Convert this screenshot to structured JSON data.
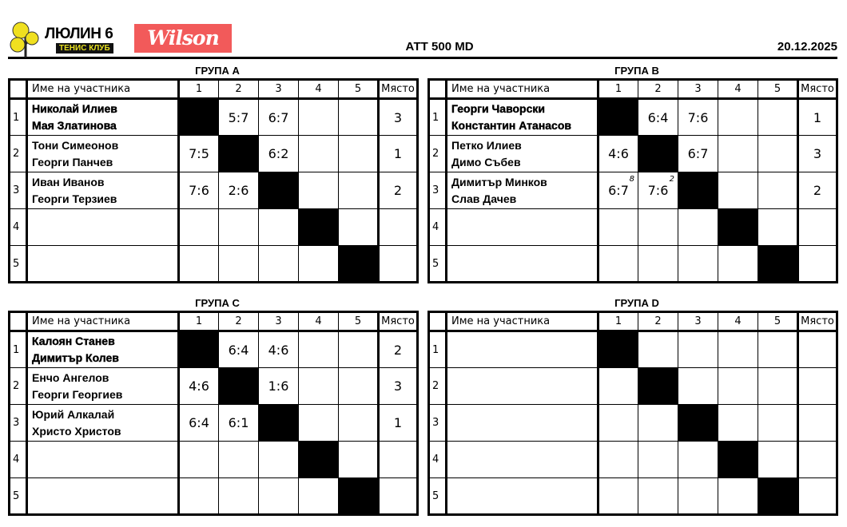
{
  "header": {
    "club_name": "ЛЮЛИН 6",
    "club_sub": "ТЕНИС КЛУБ",
    "sponsor": "Wilson",
    "title": "АТТ 500 MD",
    "date": "20.12.2025"
  },
  "columns": {
    "name": "Име на участника",
    "nums": [
      "1",
      "2",
      "3",
      "4",
      "5"
    ],
    "place": "Място"
  },
  "groups": [
    {
      "title": "ГРУПА A",
      "rows": [
        {
          "n": "1",
          "p1": "Николай Илиев",
          "p2": "Мая Златинова",
          "scores": [
            "",
            "5:7",
            "6:7",
            "",
            ""
          ],
          "tb": [
            "",
            "",
            "",
            "",
            ""
          ],
          "place": "3"
        },
        {
          "n": "2",
          "p1": "Тони Симеонов",
          "p2": "Георги Панчев",
          "scores": [
            "7:5",
            "",
            "6:2",
            "",
            ""
          ],
          "tb": [
            "",
            "",
            "",
            "",
            ""
          ],
          "place": "1"
        },
        {
          "n": "3",
          "p1": "Иван Иванов",
          "p2": "Георги Терзиев",
          "scores": [
            "7:6",
            "2:6",
            "",
            "",
            ""
          ],
          "tb": [
            "",
            "",
            "",
            "",
            ""
          ],
          "place": "2"
        },
        {
          "n": "4",
          "p1": "",
          "p2": "",
          "scores": [
            "",
            "",
            "",
            "",
            ""
          ],
          "tb": [
            "",
            "",
            "",
            "",
            ""
          ],
          "place": ""
        },
        {
          "n": "5",
          "p1": "",
          "p2": "",
          "scores": [
            "",
            "",
            "",
            "",
            ""
          ],
          "tb": [
            "",
            "",
            "",
            "",
            ""
          ],
          "place": ""
        }
      ]
    },
    {
      "title": "ГРУПА B",
      "rows": [
        {
          "n": "1",
          "p1": "Георги Чаворски",
          "p2": "Константин Атанасов",
          "scores": [
            "",
            "6:4",
            "7:6",
            "",
            ""
          ],
          "tb": [
            "",
            "",
            "",
            "",
            ""
          ],
          "place": "1"
        },
        {
          "n": "2",
          "p1": "Петко Илиев",
          "p2": "Димо Събев",
          "scores": [
            "4:6",
            "",
            "6:7",
            "",
            ""
          ],
          "tb": [
            "",
            "",
            "",
            "",
            ""
          ],
          "place": "3"
        },
        {
          "n": "3",
          "p1": "Димитър Минков",
          "p2": "Слав Дачев",
          "scores": [
            "6:7",
            "7:6",
            "",
            "",
            ""
          ],
          "tb": [
            "8",
            "2",
            "",
            "",
            ""
          ],
          "place": "2"
        },
        {
          "n": "4",
          "p1": "",
          "p2": "",
          "scores": [
            "",
            "",
            "",
            "",
            ""
          ],
          "tb": [
            "",
            "",
            "",
            "",
            ""
          ],
          "place": ""
        },
        {
          "n": "5",
          "p1": "",
          "p2": "",
          "scores": [
            "",
            "",
            "",
            "",
            ""
          ],
          "tb": [
            "",
            "",
            "",
            "",
            ""
          ],
          "place": ""
        }
      ]
    },
    {
      "title": "ГРУПА C",
      "rows": [
        {
          "n": "1",
          "p1": "Калоян Станев",
          "p2": "Димитър Колев",
          "scores": [
            "",
            "6:4",
            "4:6",
            "",
            ""
          ],
          "tb": [
            "",
            "",
            "",
            "",
            ""
          ],
          "place": "2"
        },
        {
          "n": "2",
          "p1": "Енчо Ангелов",
          "p2": "Георги Георгиев",
          "scores": [
            "4:6",
            "",
            "1:6",
            "",
            ""
          ],
          "tb": [
            "",
            "",
            "",
            "",
            ""
          ],
          "place": "3"
        },
        {
          "n": "3",
          "p1": "Юрий Алкалай",
          "p2": "Христо Христов",
          "scores": [
            "6:4",
            "6:1",
            "",
            "",
            ""
          ],
          "tb": [
            "",
            "",
            "",
            "",
            ""
          ],
          "place": "1"
        },
        {
          "n": "4",
          "p1": "",
          "p2": "",
          "scores": [
            "",
            "",
            "",
            "",
            ""
          ],
          "tb": [
            "",
            "",
            "",
            "",
            ""
          ],
          "place": ""
        },
        {
          "n": "5",
          "p1": "",
          "p2": "",
          "scores": [
            "",
            "",
            "",
            "",
            ""
          ],
          "tb": [
            "",
            "",
            "",
            "",
            ""
          ],
          "place": ""
        }
      ]
    },
    {
      "title": "ГРУПА D",
      "rows": [
        {
          "n": "1",
          "p1": "",
          "p2": "",
          "scores": [
            "",
            "",
            "",
            "",
            ""
          ],
          "tb": [
            "",
            "",
            "",
            "",
            ""
          ],
          "place": ""
        },
        {
          "n": "2",
          "p1": "",
          "p2": "",
          "scores": [
            "",
            "",
            "",
            "",
            ""
          ],
          "tb": [
            "",
            "",
            "",
            "",
            ""
          ],
          "place": ""
        },
        {
          "n": "3",
          "p1": "",
          "p2": "",
          "scores": [
            "",
            "",
            "",
            "",
            ""
          ],
          "tb": [
            "",
            "",
            "",
            "",
            ""
          ],
          "place": ""
        },
        {
          "n": "4",
          "p1": "",
          "p2": "",
          "scores": [
            "",
            "",
            "",
            "",
            ""
          ],
          "tb": [
            "",
            "",
            "",
            "",
            ""
          ],
          "place": ""
        },
        {
          "n": "5",
          "p1": "",
          "p2": "",
          "scores": [
            "",
            "",
            "",
            "",
            ""
          ],
          "tb": [
            "",
            "",
            "",
            "",
            ""
          ],
          "place": ""
        }
      ]
    }
  ]
}
